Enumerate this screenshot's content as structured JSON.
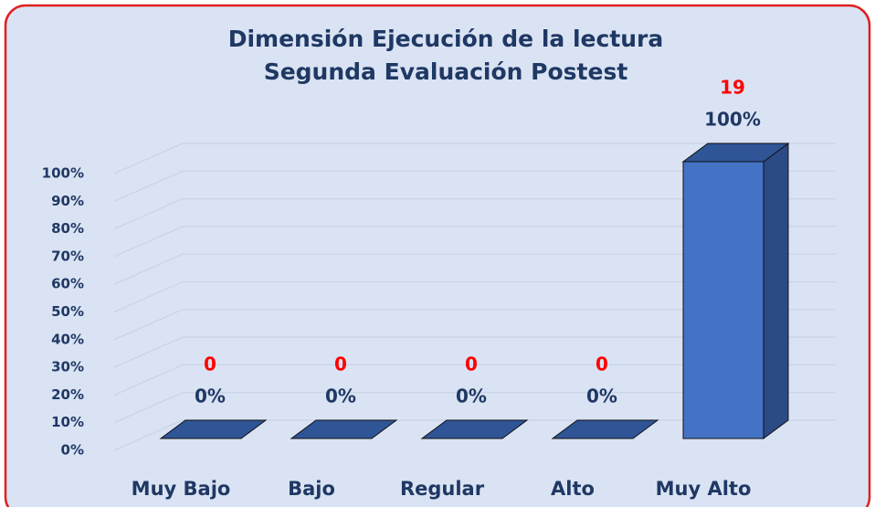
{
  "chart_data": {
    "type": "bar3d",
    "title": "Dimensión Ejecución de la lectura",
    "subtitle": "Segunda Evaluación Postest",
    "categories": [
      "Muy Bajo",
      "Bajo",
      "Regular",
      "Alto",
      "Muy Alto"
    ],
    "values": [
      0,
      0,
      0,
      0,
      100
    ],
    "value_labels": [
      "0%",
      "0%",
      "0%",
      "0%",
      "100%"
    ],
    "counts": [
      0,
      0,
      0,
      0,
      19
    ],
    "color": "#4472c4",
    "ylim": [
      0,
      100
    ],
    "yticks": [
      {
        "value": 0,
        "label": "0%"
      },
      {
        "value": 10,
        "label": "10%"
      },
      {
        "value": 20,
        "label": "20%"
      },
      {
        "value": 30,
        "label": "30%"
      },
      {
        "value": 40,
        "label": "40%"
      },
      {
        "value": 50,
        "label": "50%"
      },
      {
        "value": 60,
        "label": "60%"
      },
      {
        "value": 70,
        "label": "70%"
      },
      {
        "value": 80,
        "label": "80%"
      },
      {
        "value": 90,
        "label": "90%"
      },
      {
        "value": 100,
        "label": "100%"
      }
    ],
    "grid": true
  }
}
